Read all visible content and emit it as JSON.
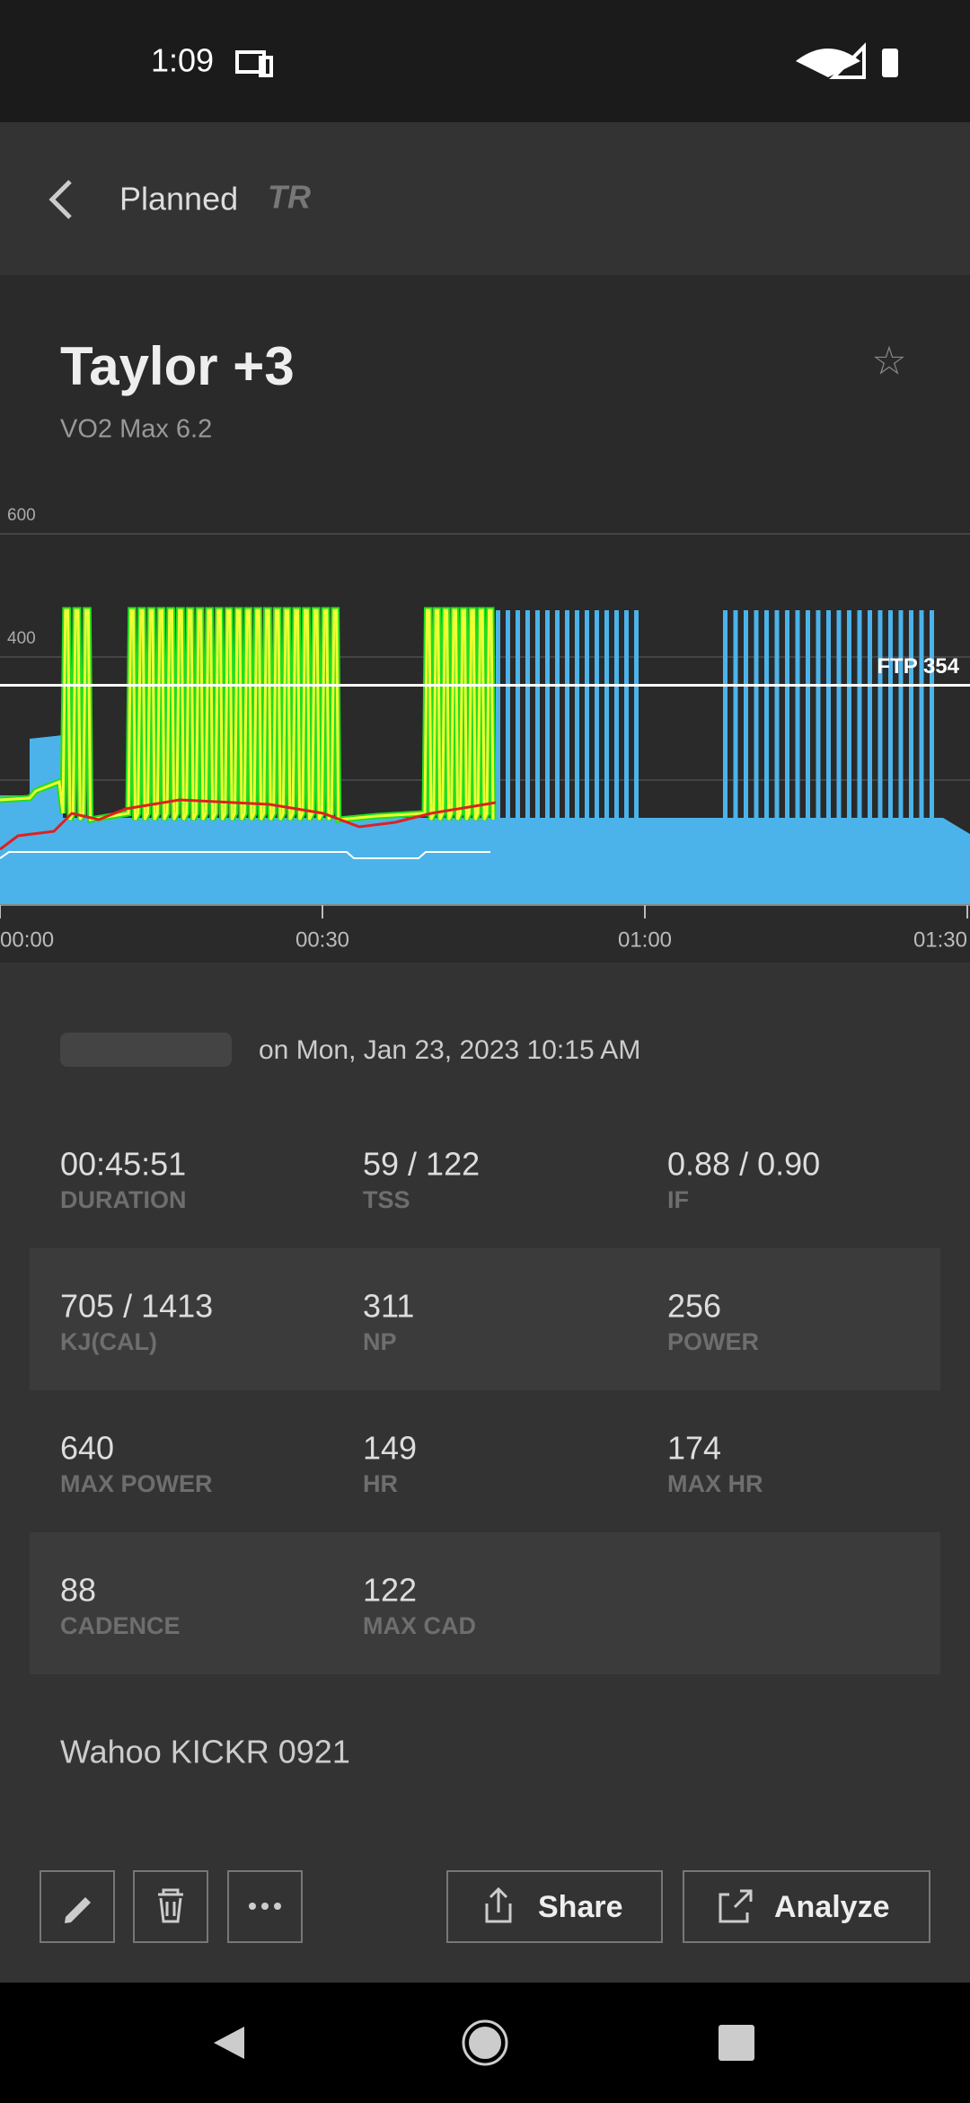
{
  "status_bar": {
    "time": "1:09"
  },
  "header": {
    "title": "Planned",
    "logo": "TR"
  },
  "workout": {
    "title": "Taylor +3",
    "subtitle": "VO2 Max 6.2"
  },
  "chart_data": {
    "type": "workout",
    "ylim": [
      0,
      600
    ],
    "yticks": [
      400,
      600
    ],
    "xlim": [
      0,
      90
    ],
    "xticks": [
      {
        "value": 0,
        "label": "00:00"
      },
      {
        "value": 30,
        "label": "00:30"
      },
      {
        "value": 60,
        "label": "01:00"
      },
      {
        "value": 90,
        "label": "01:30"
      }
    ],
    "ftp": {
      "value": 354,
      "label": "FTP 354"
    }
  },
  "ride": {
    "date": "on Mon, Jan 23, 2023 10:15 AM",
    "stats": [
      {
        "value": "00:45:51",
        "label": "DURATION"
      },
      {
        "value": "59 / 122",
        "label": "TSS"
      },
      {
        "value": "0.88 / 0.90",
        "label": "IF"
      },
      {
        "value": "705 / 1413",
        "label": "KJ(CAL)"
      },
      {
        "value": "311",
        "label": "NP"
      },
      {
        "value": "256",
        "label": "POWER"
      },
      {
        "value": "640",
        "label": "MAX POWER"
      },
      {
        "value": "149",
        "label": "HR"
      },
      {
        "value": "174",
        "label": "MAX HR"
      },
      {
        "value": "88",
        "label": "CADENCE"
      },
      {
        "value": "122",
        "label": "MAX CAD"
      }
    ],
    "device": "Wahoo KICKR 0921"
  },
  "actions": {
    "share": "Share",
    "analyze": "Analyze"
  }
}
